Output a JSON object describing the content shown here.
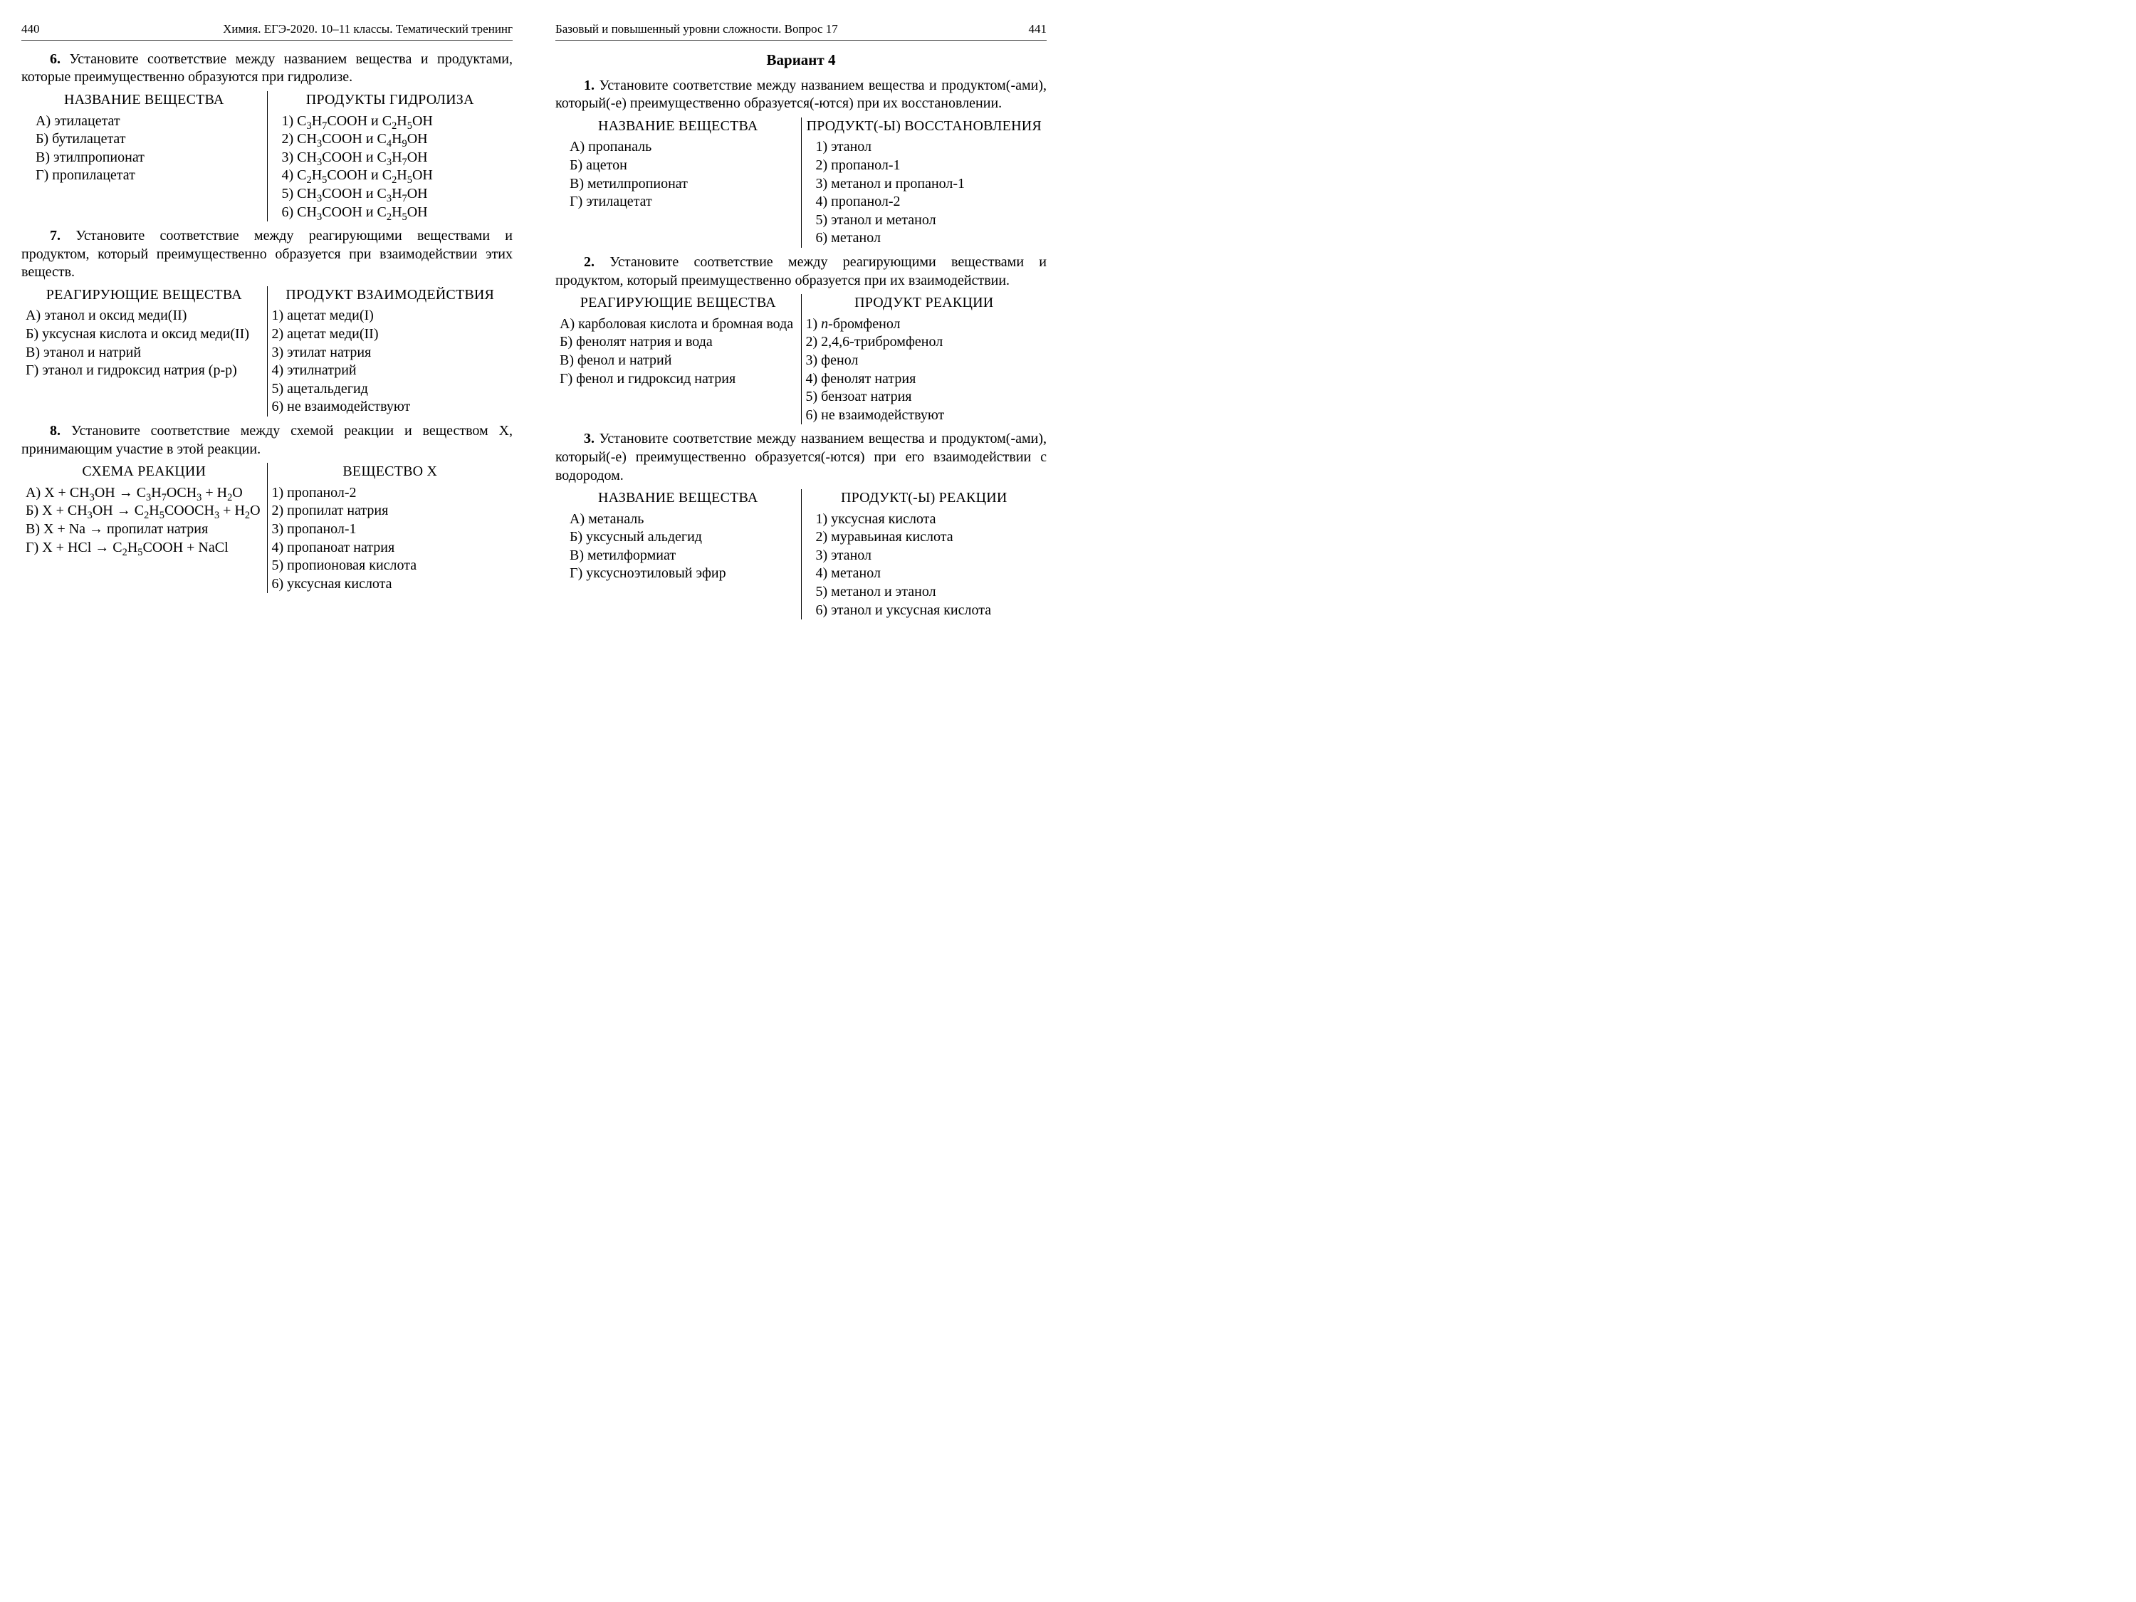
{
  "left_page": {
    "page_number": "440",
    "running_title": "Химия. ЕГЭ-2020. 10–11 классы. Тематический тренинг",
    "q6": {
      "num": "6.",
      "text": "Установите соответствие между названием вещества и продуктами, которые преимущественно образуются при гидролизе.",
      "left_head": "НАЗВАНИЕ ВЕЩЕСТВА",
      "right_head": "ПРОДУКТЫ ГИДРОЛИЗА",
      "left_items": [
        "А) этилацетат",
        "Б) бутилацетат",
        "В) этилпропионат",
        "Г) пропилацетат"
      ],
      "right_items": [
        "1) C<sub>3</sub>H<sub>7</sub>COOH и C<sub>2</sub>H<sub>5</sub>OH",
        "2) CH<sub>3</sub>COOH и C<sub>4</sub>H<sub>9</sub>OH",
        "3) CH<sub>3</sub>COOH и C<sub>3</sub>H<sub>7</sub>OH",
        "4) C<sub>2</sub>H<sub>5</sub>COOH и C<sub>2</sub>H<sub>5</sub>OH",
        "5) CH<sub>3</sub>COOH и C<sub>3</sub>H<sub>7</sub>OH",
        "6) CH<sub>3</sub>COOH и C<sub>2</sub>H<sub>5</sub>OH"
      ]
    },
    "q7": {
      "num": "7.",
      "text": "Установите соответствие между реагирующими веществами и продуктом, который преимущественно образуется при взаимодействии этих веществ.",
      "left_head": "РЕАГИРУЮЩИЕ ВЕЩЕСТВА",
      "right_head": "ПРОДУКТ ВЗАИМОДЕЙСТВИЯ",
      "left_items": [
        "А) этанол и оксид меди(II)",
        "Б) уксусная кислота и оксид меди(II)",
        "В) этанол и натрий",
        "Г) этанол и гидроксид натрия (р-р)"
      ],
      "right_items": [
        "1) ацетат меди(I)",
        "2) ацетат меди(II)",
        "3) этилат натрия",
        "4) этилнатрий",
        "5) ацетальдегид",
        "6) не взаимодействуют"
      ]
    },
    "q8": {
      "num": "8.",
      "text": "Установите соответствие между схемой реакции и веществом X, принимающим участие в этой реакции.",
      "left_head": "СХЕМА РЕАКЦИИ",
      "right_head": "ВЕЩЕСТВО X",
      "left_items": [
        "А) X + CH<sub>3</sub>OH → C<sub>3</sub>H<sub>7</sub>OCH<sub>3</sub> + H<sub>2</sub>O",
        "Б) X + CH<sub>3</sub>OH → C<sub>2</sub>H<sub>5</sub>COOCH<sub>3</sub> + H<sub>2</sub>O",
        "В) X + Na → пропилат натрия",
        "Г) X + HCl → C<sub>2</sub>H<sub>5</sub>COOH + NaCl"
      ],
      "right_items": [
        "1) пропанол-2",
        "2) пропилат натрия",
        "3) пропанол-1",
        "4) пропаноат натрия",
        "5) пропионовая кислота",
        "6) уксусная кислота"
      ]
    }
  },
  "right_page": {
    "page_number": "441",
    "running_title": "Базовый и повышенный уровни сложности. Вопрос 17",
    "variant_title": "Вариант 4",
    "q1": {
      "num": "1.",
      "text": "Установите соответствие между названием вещества и продуктом(-ами), который(-е) преимущественно образуется(-ются) при их восстановлении.",
      "left_head": "НАЗВАНИЕ ВЕЩЕСТВА",
      "right_head": "ПРОДУКТ(-Ы) ВОССТАНОВЛЕНИЯ",
      "left_items": [
        "А) пропаналь",
        "Б) ацетон",
        "В) метилпропионат",
        "Г) этилацетат"
      ],
      "right_items": [
        "1) этанол",
        "2) пропанол-1",
        "3) метанол и пропанол-1",
        "4) пропанол-2",
        "5) этанол и метанол",
        "6) метанол"
      ]
    },
    "q2": {
      "num": "2.",
      "text": "Установите соответствие между реагирующими веществами и продуктом, который преимущественно образуется при их взаимодействии.",
      "left_head": "РЕАГИРУЮЩИЕ ВЕЩЕСТВА",
      "right_head": "ПРОДУКТ РЕАКЦИИ",
      "left_items": [
        "А) карболовая кислота и бромная вода",
        "Б) фенолят натрия и вода",
        "В) фенол и натрий",
        "Г) фенол и гидроксид натрия"
      ],
      "right_items": [
        "1) <span class='ital'>п</span>-бромфенол",
        "2) 2,4,6-трибромфенол",
        "3) фенол",
        "4) фенолят натрия",
        "5) бензоат натрия",
        "6) не взаимодействуют"
      ]
    },
    "q3": {
      "num": "3.",
      "text": "Установите соответствие между названием вещества и продуктом(-ами), который(-е) преимущественно образуется(-ются) при его взаимодействии с водородом.",
      "left_head": "НАЗВАНИЕ ВЕЩЕСТВА",
      "right_head": "ПРОДУКТ(-Ы) РЕАКЦИИ",
      "left_items": [
        "А) метаналь",
        "Б) уксусный альдегид",
        "В) метилформиат",
        "Г) уксусноэтиловый эфир"
      ],
      "right_items": [
        "1) уксусная кислота",
        "2) муравьиная кислота",
        "3) этанол",
        "4) метанол",
        "5) метанол и этанол",
        "6) этанол и уксусная кислота"
      ]
    }
  }
}
